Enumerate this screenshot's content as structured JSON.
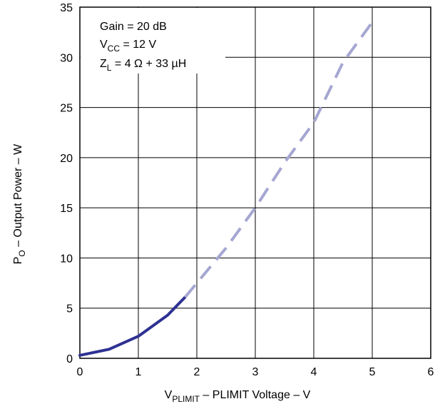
{
  "chart_data": {
    "type": "line",
    "title": "",
    "xlabel": {
      "main": "V",
      "sub": "PLIMIT",
      "rest": " – PLIMIT Voltage – V"
    },
    "ylabel": {
      "main": "P",
      "sub": "O",
      "rest": " – Output Power – W"
    },
    "xlim": [
      0,
      6
    ],
    "ylim": [
      0,
      35
    ],
    "xticks": [
      0,
      1,
      2,
      3,
      4,
      5,
      6
    ],
    "yticks": [
      0,
      5,
      10,
      15,
      20,
      25,
      30,
      35
    ],
    "grid": true,
    "annotations": [
      {
        "main": "Gain = 20 dB",
        "sub": "",
        "rest": ""
      },
      {
        "main": "V",
        "sub": "CC",
        "rest": " = 12 V"
      },
      {
        "main": "Z",
        "sub": "L",
        "rest": " = 4 Ω + 33 µH"
      }
    ],
    "series": [
      {
        "style": "solid",
        "color": "#2e3192",
        "x": [
          0,
          0.5,
          1.0,
          1.5,
          1.8
        ],
        "y": [
          0.3,
          0.9,
          2.2,
          4.3,
          6.1
        ]
      },
      {
        "style": "dashed",
        "color": "#a6a6d2",
        "x": [
          1.8,
          2.0,
          2.5,
          3.0,
          3.5,
          4.0,
          4.5,
          5.0
        ],
        "y": [
          6.1,
          7.5,
          11.0,
          15.0,
          19.5,
          23.5,
          29.5,
          33.5
        ]
      }
    ]
  }
}
